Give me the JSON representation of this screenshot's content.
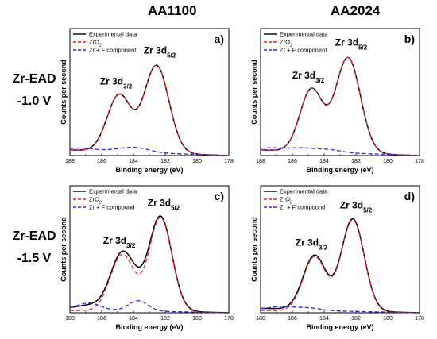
{
  "columns": [
    "AA1100",
    "AA2024"
  ],
  "rows": [
    {
      "line1": "Zr-EAD",
      "line2": "-1.0 V"
    },
    {
      "line1": "Zr-EAD",
      "line2": "-1.5 V"
    }
  ],
  "colors": {
    "experimental": "#000000",
    "zro2": "#e8262b",
    "zrf": "#2b2bd6"
  },
  "chart_data": [
    {
      "type": "line",
      "tag": "a)",
      "xlabel": "Binding energy (eV)",
      "ylabel": "Counts per second",
      "xlim": [
        188,
        178
      ],
      "x_reversed": true,
      "xticks": [
        "188",
        "186",
        "184",
        "182",
        "180",
        "178"
      ],
      "legend": [
        "Experimental data",
        "ZrO2",
        "Zr + F component"
      ],
      "legend_position": "top-left",
      "peak_labels": [
        {
          "base": "Zr 3d",
          "sub": "3/2"
        },
        {
          "base": "Zr 3d",
          "sub": "5/2"
        }
      ],
      "ylim": [
        0,
        1.12
      ],
      "series": [
        {
          "name": "Experimental data",
          "style": "solid",
          "peaks": [
            [
              184.9,
              0.5,
              0.75
            ],
            [
              182.55,
              0.77,
              0.78
            ]
          ],
          "base": [
            0.05,
            0.0
          ]
        },
        {
          "name": "ZrO2",
          "style": "dashed",
          "peaks": [
            [
              184.9,
              0.5,
              0.75
            ],
            [
              182.55,
              0.77,
              0.78
            ]
          ],
          "base": [
            0.05,
            0.0
          ]
        },
        {
          "name": "Zr + F component",
          "style": "dashed",
          "peaks": [
            [
              187.2,
              0.02,
              0.8
            ],
            [
              184.4,
              0.03,
              0.9
            ],
            [
              183.5,
              0.02,
              0.7
            ]
          ],
          "base": [
            0.05,
            0.0
          ]
        }
      ]
    },
    {
      "type": "line",
      "tag": "b)",
      "xlabel": "Binding energy (eV)",
      "ylabel": "Counts per second",
      "xlim": [
        188,
        178
      ],
      "x_reversed": true,
      "xticks": [
        "188",
        "186",
        "184",
        "182",
        "180",
        "178"
      ],
      "legend": [
        "Experimental data",
        "ZrO2",
        "Zr + F component"
      ],
      "legend_position": "top-left",
      "peak_labels": [
        {
          "base": "Zr 3d",
          "sub": "3/2"
        },
        {
          "base": "Zr 3d",
          "sub": "5/2"
        }
      ],
      "ylim": [
        0,
        1.12
      ],
      "series": [
        {
          "name": "Experimental data",
          "style": "solid",
          "peaks": [
            [
              184.8,
              0.55,
              0.72
            ],
            [
              182.5,
              0.84,
              0.78
            ]
          ],
          "base": [
            0.05,
            0.0
          ]
        },
        {
          "name": "ZrO2",
          "style": "dashed",
          "peaks": [
            [
              184.8,
              0.55,
              0.72
            ],
            [
              182.5,
              0.84,
              0.78
            ]
          ],
          "base": [
            0.05,
            0.0
          ]
        },
        {
          "name": "Zr + F component",
          "style": "dashed",
          "peaks": [
            [
              187.3,
              0.02,
              0.8
            ],
            [
              185.3,
              0.03,
              0.9
            ],
            [
              183.6,
              0.02,
              0.7
            ]
          ],
          "base": [
            0.05,
            0.0
          ]
        }
      ]
    },
    {
      "type": "line",
      "tag": "c)",
      "xlabel": "Binding energy (eV)",
      "ylabel": "Counts per second",
      "xlim": [
        188,
        178
      ],
      "x_reversed": true,
      "xticks": [
        "188",
        "186",
        "184",
        "182",
        "180",
        "178"
      ],
      "legend": [
        "Experimental data",
        "ZrO2",
        "Zr + F compound"
      ],
      "legend_position": "top-left",
      "peak_labels": [
        {
          "base": "Zr 3d",
          "sub": "3/2"
        },
        {
          "base": "Zr 3d",
          "sub": "5/2"
        }
      ],
      "ylim": [
        0,
        1.12
      ],
      "series": [
        {
          "name": "Experimental data",
          "style": "solid",
          "peaks": [
            [
              184.7,
              0.5,
              0.75
            ],
            [
              182.3,
              0.83,
              0.72
            ],
            [
              186.8,
              0.03,
              0.7
            ],
            [
              183.7,
              0.05,
              0.6
            ]
          ],
          "base": [
            0.04,
            0.0
          ]
        },
        {
          "name": "ZrO2",
          "style": "dashed",
          "peaks": [
            [
              184.7,
              0.5,
              0.75
            ],
            [
              182.3,
              0.83,
              0.72
            ]
          ],
          "base": [
            0.02,
            0.0
          ]
        },
        {
          "name": "Zr + F compound",
          "style": "dashed",
          "peaks": [
            [
              186.8,
              0.06,
              0.7
            ],
            [
              183.7,
              0.09,
              0.6
            ]
          ],
          "base": [
            0.03,
            0.0
          ]
        }
      ]
    },
    {
      "type": "line",
      "tag": "d)",
      "xlabel": "Binding energy (eV)",
      "ylabel": "Counts per second",
      "xlim": [
        188,
        178
      ],
      "x_reversed": true,
      "xticks": [
        "188",
        "186",
        "184",
        "182",
        "180",
        "178"
      ],
      "legend": [
        "Experimental data",
        "ZrO2",
        "Zr + F compound"
      ],
      "legend_position": "top-left",
      "peak_labels": [
        {
          "base": "Zr 3d",
          "sub": "3/2"
        },
        {
          "base": "Zr 3d",
          "sub": "5/2"
        }
      ],
      "ylim": [
        0,
        1.12
      ],
      "series": [
        {
          "name": "Experimental data",
          "style": "solid",
          "peaks": [
            [
              184.6,
              0.48,
              0.72
            ],
            [
              182.2,
              0.81,
              0.72
            ]
          ],
          "base": [
            0.04,
            0.0
          ]
        },
        {
          "name": "ZrO2",
          "style": "dashed",
          "peaks": [
            [
              184.6,
              0.48,
              0.72
            ],
            [
              182.2,
              0.81,
              0.72
            ]
          ],
          "base": [
            0.02,
            0.0
          ]
        },
        {
          "name": "Zr + F compound",
          "style": "dashed",
          "peaks": [
            [
              186.6,
              0.03,
              0.8
            ],
            [
              184.9,
              0.02,
              0.7
            ]
          ],
          "base": [
            0.03,
            0.0
          ]
        }
      ]
    }
  ]
}
